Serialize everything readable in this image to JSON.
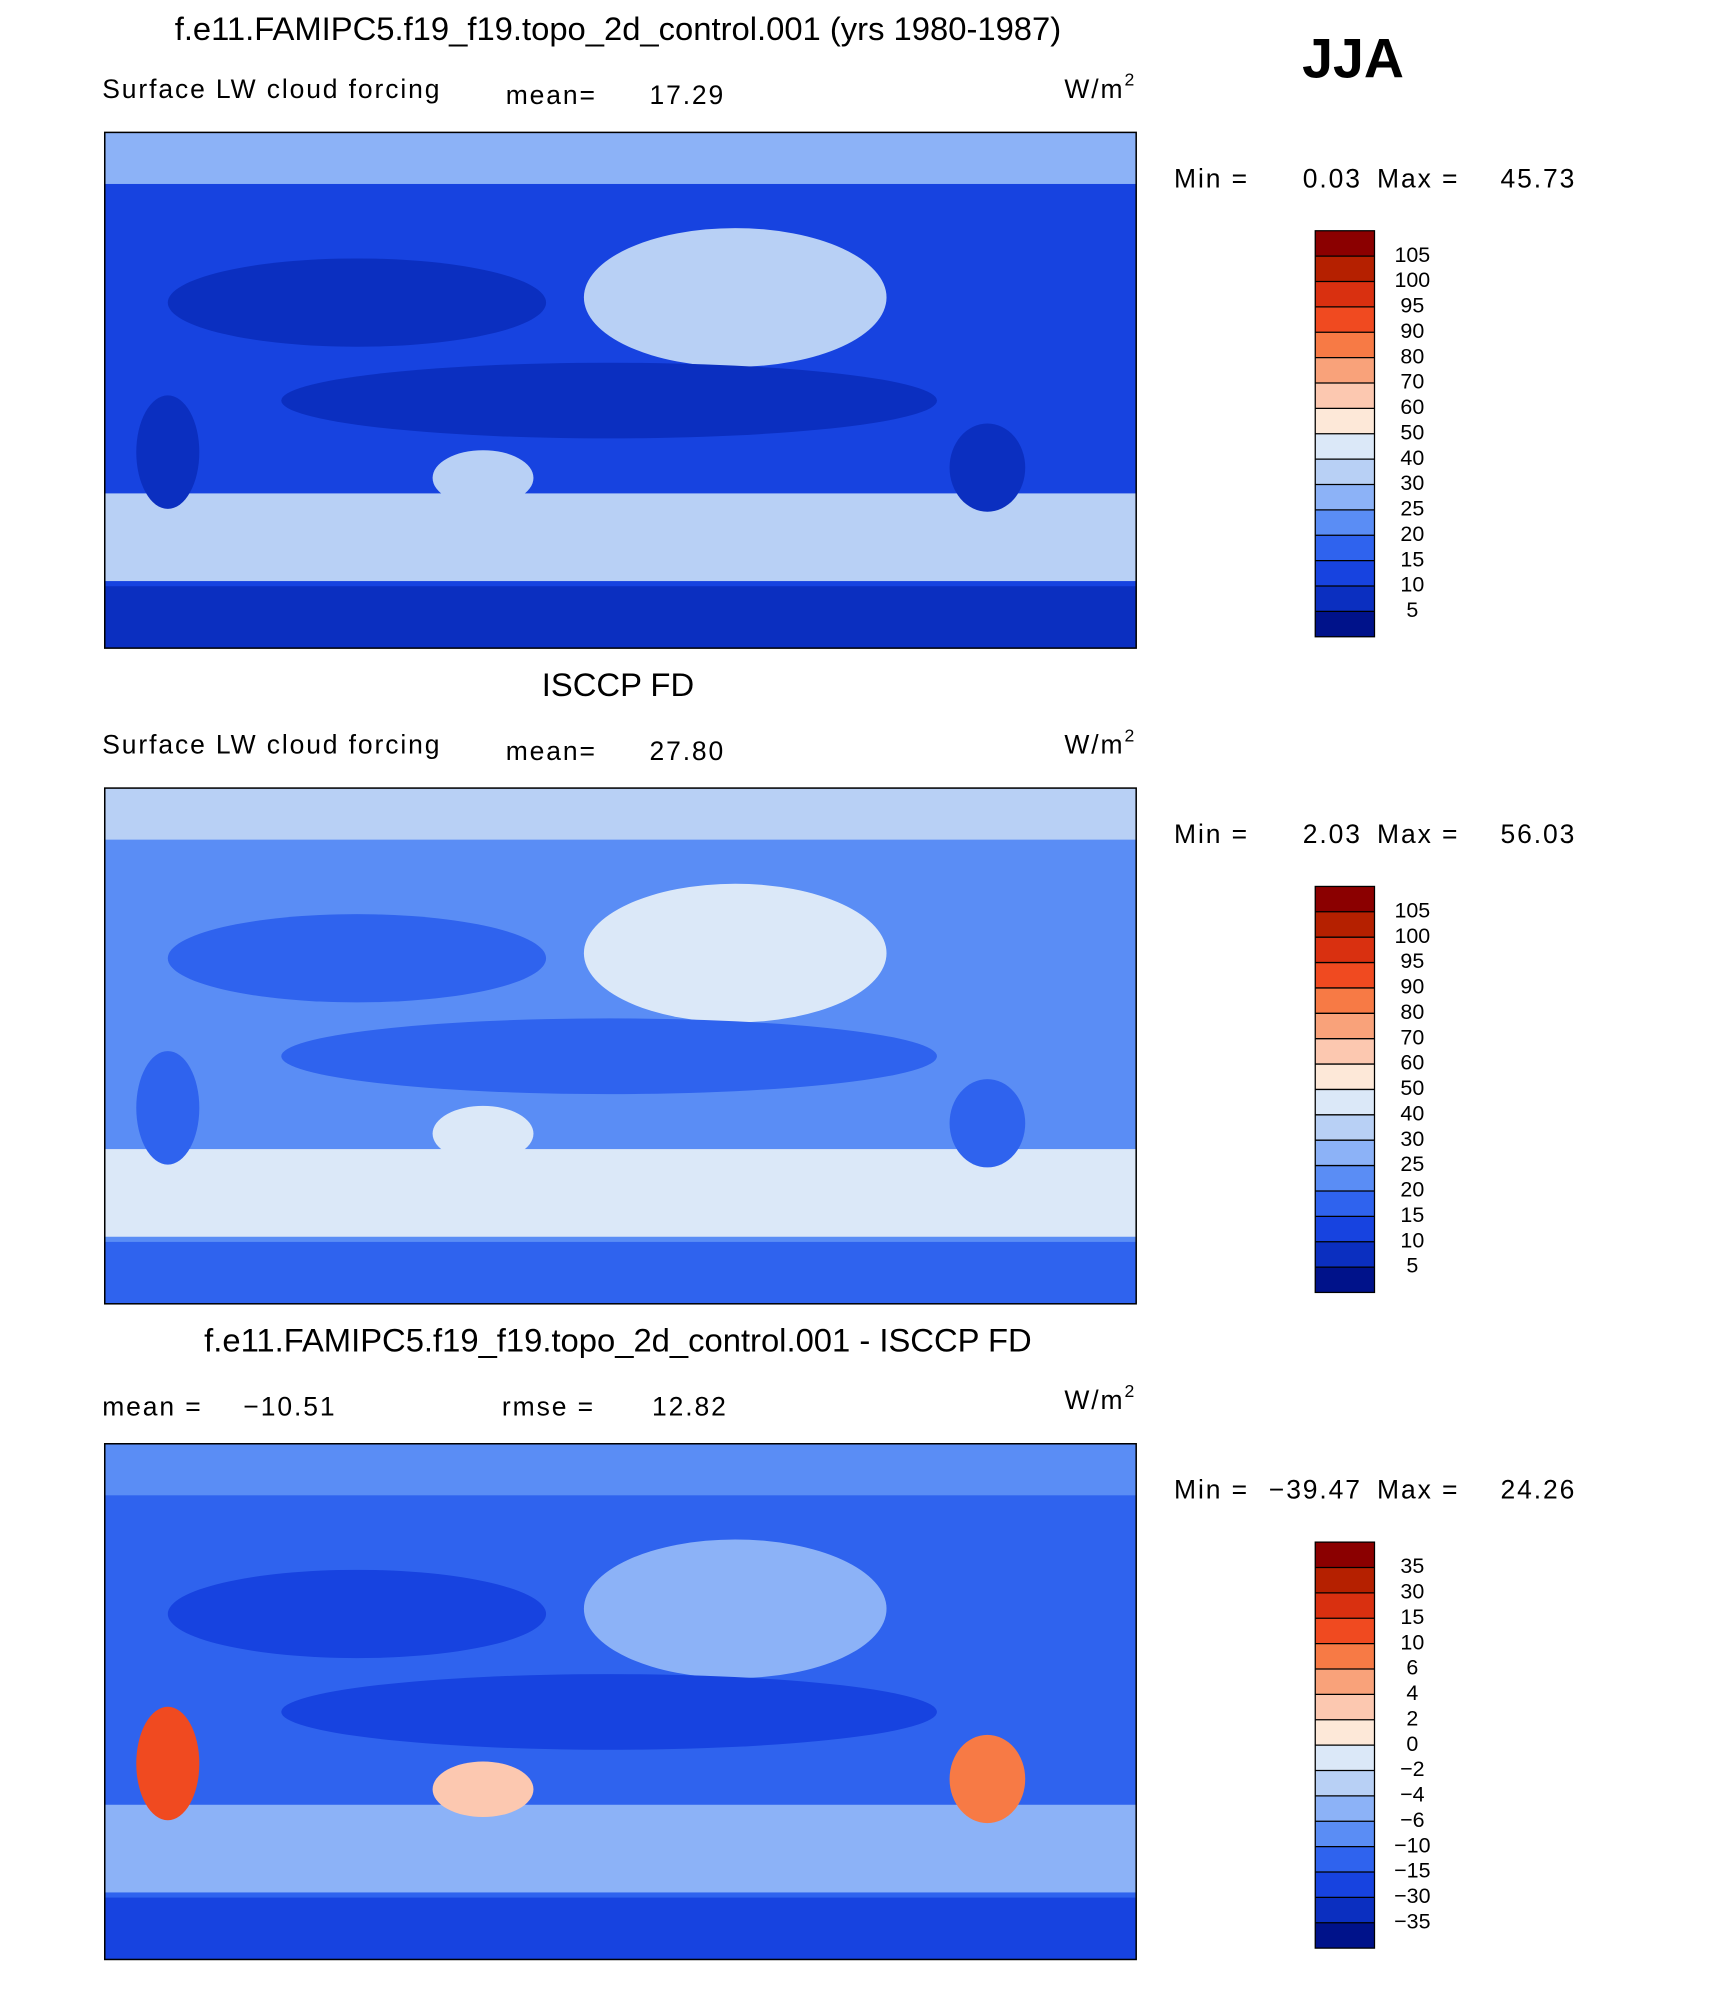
{
  "figure_label": "JJA",
  "colors": [
    "#8b0000",
    "#b52000",
    "#d93010",
    "#f04a20",
    "#f77a45",
    "#f9a27a",
    "#fcc8b0",
    "#fde8d8",
    "#dbe8f8",
    "#b8d0f5",
    "#8cb2f7",
    "#5a8df5",
    "#2f63ee",
    "#1743e0",
    "#0b2fc0",
    "#00128a"
  ],
  "panels": [
    {
      "title": "f.e11.FAMIPC5.f19_f19.topo_2d_control.001 (yrs 1980-1987)",
      "field": "Surface LW cloud forcing",
      "mean_label": "mean=",
      "mean": 17.29,
      "units": {
        "base": "W/m",
        "exponent": "2"
      },
      "min_label": "Min =",
      "min": 0.03,
      "max_label": "Max =",
      "max": 45.73,
      "levels": [
        105,
        100,
        95,
        90,
        80,
        70,
        60,
        50,
        40,
        30,
        25,
        20,
        15,
        10,
        5
      ]
    },
    {
      "title": "ISCCP FD",
      "field": "Surface LW cloud forcing",
      "mean_label": "mean=",
      "mean": {
        "value": 27.8,
        "label": "27.80"
      },
      "units": {
        "base": "W/m",
        "exponent": "2"
      },
      "min_label": "Min =",
      "min": 2.03,
      "max_label": "Max =",
      "max": 56.03,
      "levels": [
        105,
        100,
        95,
        90,
        80,
        70,
        60,
        50,
        40,
        30,
        25,
        20,
        15,
        10,
        5
      ]
    },
    {
      "title": "f.e11.FAMIPC5.f19_f19.topo_2d_control.001 - ISCCP FD",
      "mean_label": "mean =",
      "mean": {
        "value": -10.51,
        "label": "−10.51"
      },
      "rmse_label": "rmse =",
      "rmse": 12.82,
      "units": {
        "base": "W/m",
        "exponent": "2"
      },
      "min_label": "Min =",
      "min": {
        "value": -39.47,
        "label": "−39.47"
      },
      "max_label": "Max =",
      "max": 24.26,
      "levels": [
        35,
        30,
        15,
        10,
        6,
        4,
        2,
        0,
        {
          "value": -2,
          "label": "−2"
        },
        {
          "value": -4,
          "label": "−4"
        },
        {
          "value": -6,
          "label": "−6"
        },
        {
          "value": -10,
          "label": "−10"
        },
        {
          "value": -15,
          "label": "−15"
        },
        {
          "value": -30,
          "label": "−30"
        },
        {
          "value": -35,
          "label": "−35"
        }
      ]
    }
  ]
}
